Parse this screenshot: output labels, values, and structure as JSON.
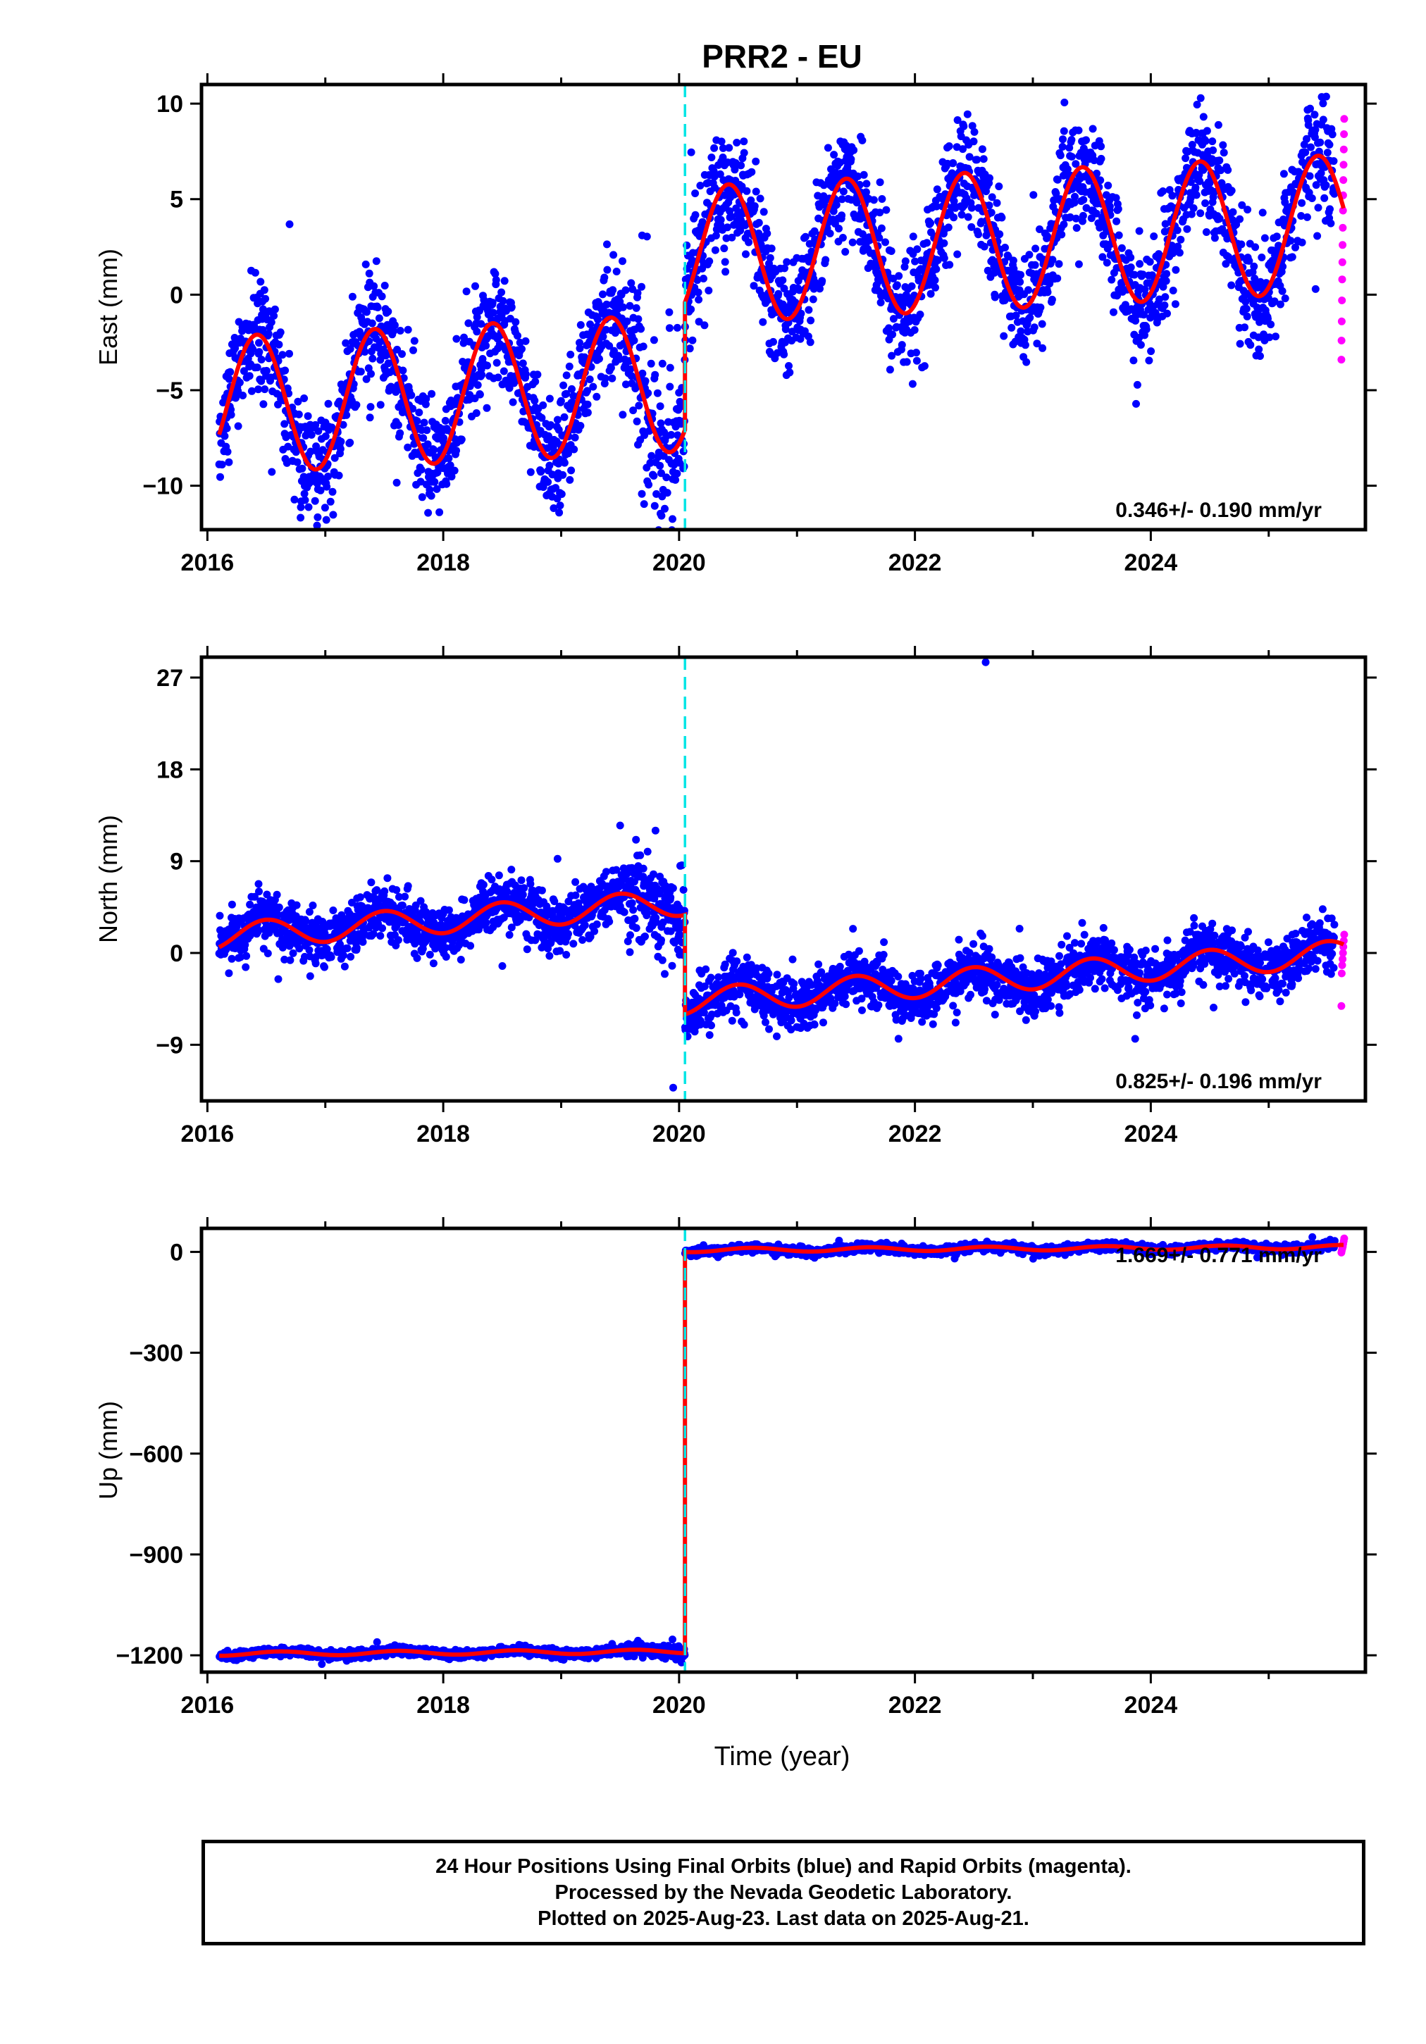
{
  "chart_data": {
    "type": "scatter",
    "title": "PRR2 - EU",
    "xlabel": "Time (year)",
    "x_range": [
      2015.95,
      2025.82
    ],
    "x_ticks": [
      2016,
      2018,
      2020,
      2022,
      2024
    ],
    "x_tick_labels": [
      "2016",
      "2018",
      "2020",
      "2022",
      "2024"
    ],
    "offset_epoch": 2020.05,
    "data_span": [
      2016.1,
      2025.64
    ],
    "rapid_span": [
      2025.56,
      2025.64
    ],
    "colors": {
      "final_orbits": "#0000ff",
      "rapid_orbits": "#ff00ff",
      "model": "#ff0000",
      "offset_line": "#00e5e5"
    },
    "panels": [
      {
        "name": "east",
        "ylabel": "East (mm)",
        "ylim": [
          -12.3,
          11.0
        ],
        "y_ticks": [
          -10,
          -5,
          0,
          5,
          10
        ],
        "y_tick_labels": [
          "−10",
          "−5",
          "0",
          "5",
          "10"
        ],
        "rate_label": "0.346+/- 0.190 mm/yr",
        "rate_mm_per_yr": 0.346,
        "model": {
          "pre_mean": -5.2,
          "post_mean": 2.9,
          "trend": 0.3,
          "amplitude": 3.6,
          "phase_peak": 0.42
        },
        "noise": 1.5,
        "rapid": [
          9.2,
          8.4,
          7.6,
          6.8,
          6.0,
          5.2,
          4.4,
          3.5,
          2.6,
          1.7,
          0.8,
          -0.3,
          -1.4,
          -2.4,
          -3.4
        ]
      },
      {
        "name": "north",
        "ylabel": "North (mm)",
        "ylim": [
          -14.5,
          29.0
        ],
        "y_ticks": [
          -9,
          0,
          9,
          18,
          27
        ],
        "y_tick_labels": [
          "−9",
          "0",
          "9",
          "18",
          "27"
        ],
        "rate_label": "0.825+/- 0.196 mm/yr",
        "rate_mm_per_yr": 0.825,
        "model": {
          "pre_mean": 3.3,
          "post_mean": -2.4,
          "trend": 0.85,
          "amplitude": 1.3,
          "phase_peak": 0.5
        },
        "noise": 1.3,
        "outliers": [
          [
            2022.6,
            28.5
          ],
          [
            2019.5,
            12.5
          ],
          [
            2019.8,
            12.0
          ],
          [
            2019.95,
            -13.2
          ]
        ],
        "rapid": [
          1.8,
          1.2,
          0.6,
          0.0,
          -0.6,
          -1.2,
          -2.0,
          -5.2
        ]
      },
      {
        "name": "up",
        "ylabel": "Up (mm)",
        "ylim": [
          -1250,
          70
        ],
        "y_ticks": [
          -1200,
          -900,
          -600,
          -300,
          0
        ],
        "y_tick_labels": [
          "−1200",
          "−900",
          "−600",
          "−300",
          "0"
        ],
        "rate_label": "1.669+/- 0.771 mm/yr",
        "rate_mm_per_yr": 1.669,
        "model": {
          "pre_mean": -1192,
          "post_mean": 10,
          "trend": 1.7,
          "amplitude": 6,
          "phase_peak": 0.62
        },
        "noise": 6,
        "rapid": [
          40,
          32,
          24,
          16,
          10,
          4,
          -2
        ]
      }
    ]
  },
  "footer": {
    "line1": "24 Hour Positions Using Final Orbits (blue) and Rapid Orbits (magenta).",
    "line2": "Processed by the Nevada Geodetic Laboratory.",
    "line3": "Plotted on 2025-Aug-23. Last data on 2025-Aug-21."
  }
}
